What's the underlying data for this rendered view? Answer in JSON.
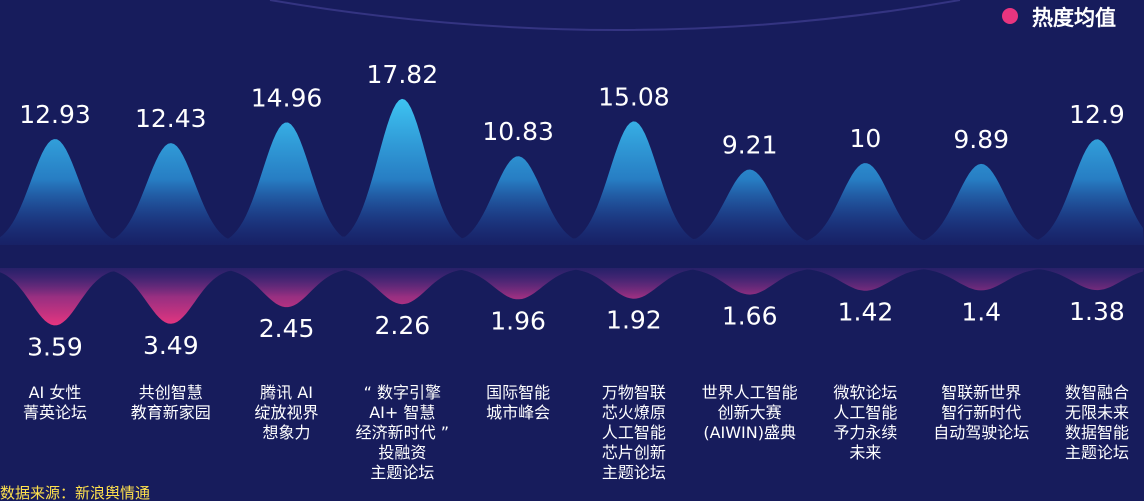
{
  "legend": {
    "label": "热度均值",
    "color": "#e8357f"
  },
  "source": "数据来源：新浪舆情通",
  "colors": {
    "background": "#171c5c",
    "upper_peak": "#3ec4f2",
    "lower_peak": "#e8357f"
  },
  "chart_data": {
    "type": "area",
    "categories": [
      [
        "AI 女性",
        "菁英论坛"
      ],
      [
        "共创智慧",
        "教育新家园"
      ],
      [
        "腾讯 AI",
        "绽放视界",
        "想象力"
      ],
      [
        "“ 数字引擎",
        "AI+ 智慧",
        "经济新时代 ”",
        "投融资",
        "主题论坛"
      ],
      [
        "国际智能",
        "城市峰会"
      ],
      [
        "万物智联",
        "芯火燎原",
        "人工智能",
        "芯片创新",
        "主题论坛"
      ],
      [
        "世界人工智能",
        "创新大赛",
        "(AIWIN)盛典"
      ],
      [
        "微软论坛",
        "人工智能",
        "予力永续",
        "未来"
      ],
      [
        "智联新世界",
        "智行新时代",
        "自动驾驶论坛"
      ],
      [
        "数智融合",
        "无限未来",
        "数据智能",
        "主题论坛"
      ]
    ],
    "series": [
      {
        "values": [
          12.93,
          12.43,
          14.96,
          17.82,
          10.83,
          15.08,
          9.21,
          10,
          9.89,
          12.9
        ],
        "labels": [
          "12.93",
          "12.43",
          "14.96",
          "17.82",
          "10.83",
          "15.08",
          "9.21",
          "10",
          "9.89",
          "12.9"
        ]
      },
      {
        "name": "热度均值",
        "values": [
          3.59,
          3.49,
          2.45,
          2.26,
          1.96,
          1.92,
          1.66,
          1.42,
          1.4,
          1.38
        ],
        "labels": [
          "3.59",
          "3.49",
          "2.45",
          "2.26",
          "1.96",
          "1.92",
          "1.66",
          "1.42",
          "1.4",
          "1.38"
        ]
      }
    ]
  }
}
